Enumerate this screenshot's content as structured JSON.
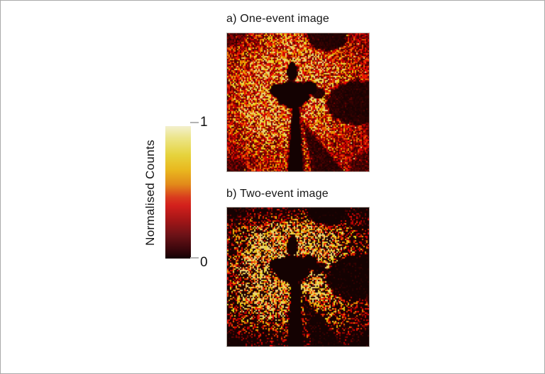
{
  "figure": {
    "colorbar": {
      "label": "Normalised Counts",
      "max_label": "1",
      "min_label": "0",
      "gradient_top_to_bottom": [
        "#f3f0cf",
        "#ece588",
        "#e6d33c",
        "#e9b81f",
        "#e28a1a",
        "#d93a1e",
        "#d3201c",
        "#a41617",
        "#6e1217",
        "#3a070c",
        "#140104"
      ]
    },
    "panels": [
      {
        "id": "one-event",
        "label": "a) One-event image",
        "seed": 7,
        "dense": true,
        "density": 1.0,
        "gain": 0.95
      },
      {
        "id": "two-event",
        "label": "b) Two-event image",
        "seed": 13,
        "dense": false,
        "density": 0.55,
        "gain": 0.8
      }
    ],
    "colors": {
      "background": "#ffffff",
      "page_border": "#aaaaaa",
      "title_text": "#161616",
      "tick": "#b3b3b3",
      "speckle_dark": "#0a0101",
      "speckle_red": "#d3201c",
      "speckle_bright": "#eab21f"
    }
  }
}
